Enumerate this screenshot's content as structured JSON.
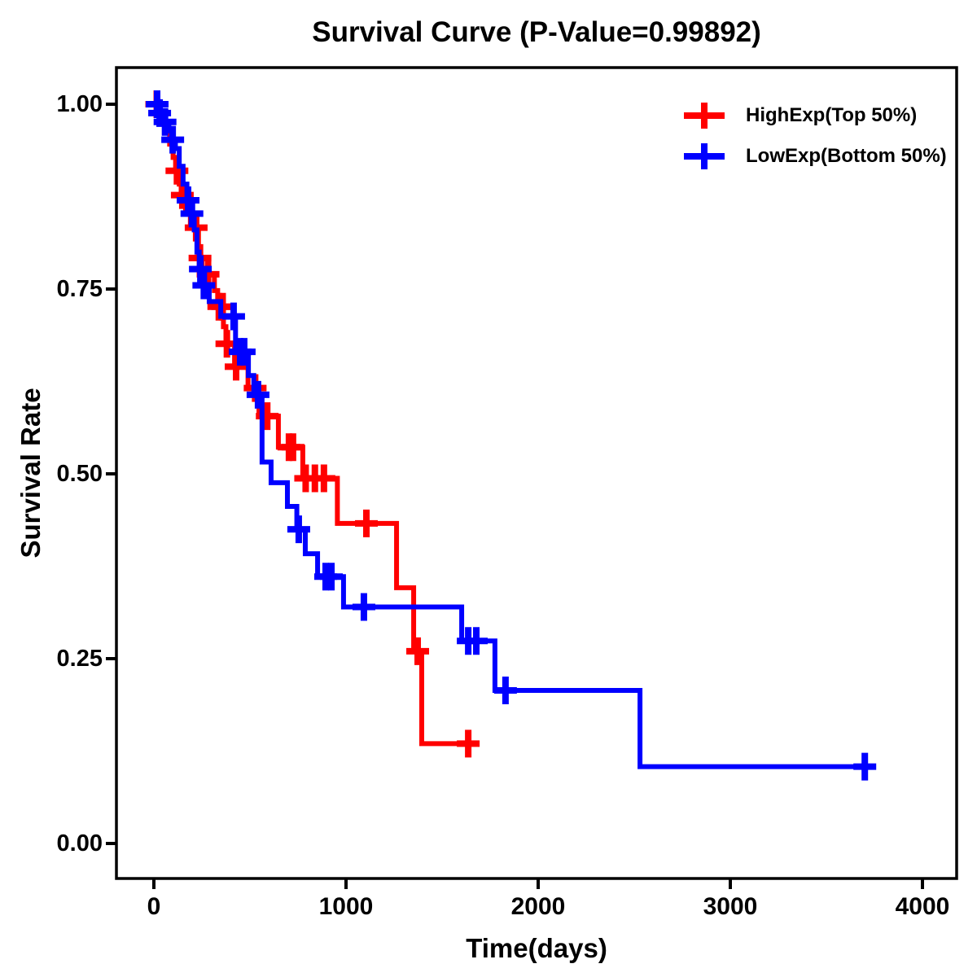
{
  "title": "Survival Curve (P-Value=0.99892)",
  "axes": {
    "x_label": "Time(days)",
    "y_label": "Survival Rate",
    "x_tick_labels": [
      "0",
      "1000",
      "2000",
      "3000",
      "4000"
    ],
    "y_tick_labels": [
      "0.00",
      "0.25",
      "0.50",
      "0.75",
      "1.00"
    ]
  },
  "legend": [
    {
      "label": "HighExp(Top 50%)",
      "color": "#FF0000",
      "symbol": "plus-icon"
    },
    {
      "label": "LowExp(Bottom 50%)",
      "color": "#0000FF",
      "symbol": "plus-icon"
    }
  ],
  "chart_data": {
    "type": "line",
    "subtype": "kaplan_meier_step",
    "title": "Survival Curve (P-Value=0.99892)",
    "xlabel": "Time(days)",
    "ylabel": "Survival Rate",
    "xlim": [
      0,
      4000
    ],
    "ylim": [
      0.0,
      1.0
    ],
    "x_ticks": [
      0,
      1000,
      2000,
      3000,
      4000
    ],
    "y_ticks": [
      0,
      0.25,
      0.5,
      0.75,
      1
    ],
    "grid": false,
    "legend_position": "top-right",
    "series": [
      {
        "name": "HighExp(Top 50%)",
        "color": "#FF0000",
        "end_time": 1686,
        "steps": [
          [
            0,
            1.0
          ],
          [
            32,
            0.982
          ],
          [
            58,
            0.964
          ],
          [
            82,
            0.946
          ],
          [
            100,
            0.928
          ],
          [
            113,
            0.91
          ],
          [
            132,
            0.892
          ],
          [
            142,
            0.877
          ],
          [
            165,
            0.855
          ],
          [
            190,
            0.833
          ],
          [
            232,
            0.792
          ],
          [
            250,
            0.77
          ],
          [
            315,
            0.748
          ],
          [
            332,
            0.726
          ],
          [
            362,
            0.699
          ],
          [
            375,
            0.676
          ],
          [
            420,
            0.645
          ],
          [
            490,
            0.616
          ],
          [
            547,
            0.578
          ],
          [
            648,
            0.536
          ],
          [
            775,
            0.494
          ],
          [
            955,
            0.433
          ],
          [
            1263,
            0.346
          ],
          [
            1352,
            0.26
          ],
          [
            1394,
            0.135
          ]
        ],
        "censors": [
          [
            15,
            1.0
          ],
          [
            120,
            0.91
          ],
          [
            148,
            0.877
          ],
          [
            220,
            0.833
          ],
          [
            240,
            0.792
          ],
          [
            282,
            0.77
          ],
          [
            338,
            0.726
          ],
          [
            358,
            0.726
          ],
          [
            380,
            0.676
          ],
          [
            428,
            0.645
          ],
          [
            527,
            0.616
          ],
          [
            590,
            0.578
          ],
          [
            703,
            0.536
          ],
          [
            724,
            0.536
          ],
          [
            790,
            0.494
          ],
          [
            838,
            0.494
          ],
          [
            885,
            0.494
          ],
          [
            1106,
            0.433
          ],
          [
            1373,
            0.26
          ],
          [
            1636,
            0.135
          ]
        ]
      },
      {
        "name": "LowExp(Bottom 50%)",
        "color": "#0000FF",
        "end_time": 3715,
        "steps": [
          [
            0,
            1.0
          ],
          [
            25,
            0.988
          ],
          [
            52,
            0.976
          ],
          [
            78,
            0.964
          ],
          [
            92,
            0.952
          ],
          [
            112,
            0.94
          ],
          [
            132,
            0.916
          ],
          [
            152,
            0.892
          ],
          [
            172,
            0.87
          ],
          [
            192,
            0.852
          ],
          [
            210,
            0.83
          ],
          [
            224,
            0.8
          ],
          [
            236,
            0.777
          ],
          [
            252,
            0.755
          ],
          [
            288,
            0.733
          ],
          [
            348,
            0.713
          ],
          [
            425,
            0.665
          ],
          [
            492,
            0.633
          ],
          [
            520,
            0.607
          ],
          [
            563,
            0.516
          ],
          [
            610,
            0.488
          ],
          [
            695,
            0.456
          ],
          [
            744,
            0.425
          ],
          [
            788,
            0.392
          ],
          [
            852,
            0.361
          ],
          [
            987,
            0.32
          ],
          [
            1602,
            0.274
          ],
          [
            1775,
            0.207
          ],
          [
            2530,
            0.104
          ]
        ],
        "censors": [
          [
            17,
            1.0
          ],
          [
            30,
            0.988
          ],
          [
            58,
            0.976
          ],
          [
            98,
            0.952
          ],
          [
            178,
            0.87
          ],
          [
            198,
            0.852
          ],
          [
            242,
            0.777
          ],
          [
            260,
            0.755
          ],
          [
            415,
            0.713
          ],
          [
            449,
            0.665
          ],
          [
            470,
            0.665
          ],
          [
            542,
            0.607
          ],
          [
            754,
            0.425
          ],
          [
            894,
            0.361
          ],
          [
            924,
            0.361
          ],
          [
            1093,
            0.32
          ],
          [
            1636,
            0.274
          ],
          [
            1678,
            0.274
          ],
          [
            1830,
            0.207
          ],
          [
            3700,
            0.104
          ]
        ]
      }
    ]
  }
}
